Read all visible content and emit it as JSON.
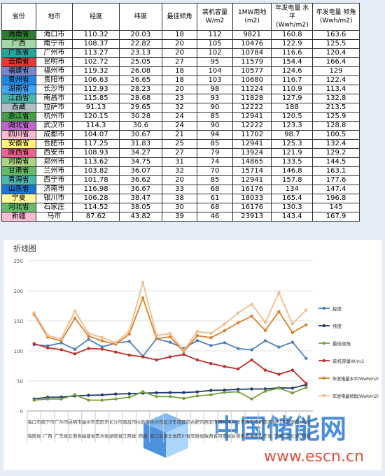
{
  "table": {
    "headers": [
      "省份",
      "地市",
      "经度",
      "纬度",
      "最佳倾角",
      "装机容量 W/m2",
      "1MW用地 (m2)",
      "年发电量 水平(Wwh/m2)",
      "年发电量 倾角(Wwh/m2)"
    ],
    "row_colors": [
      "#2e7d32",
      "#a5d6a7",
      "#26a69a",
      "#e53935",
      "#7986cb",
      "#1e88e5",
      "#42a5f5",
      "#4db6ac",
      "#b0bec5",
      "#43a047",
      "#ba68c8",
      "#f8bbd0",
      "#fff176",
      "#f06292",
      "#aed581",
      "#66bb6a",
      "#4db6ac",
      "#1976d2",
      "#fff59d",
      "#66bb6a",
      "#f8bbd0"
    ],
    "rows": [
      [
        "海南省",
        "海口市",
        110.32,
        20.03,
        18,
        112,
        9821,
        160.8,
        163.6
      ],
      [
        "广西",
        "南宁市",
        108.37,
        22.82,
        20,
        105,
        10476,
        122.9,
        125.5
      ],
      [
        "广东省",
        "广州市",
        113.27,
        23.13,
        20,
        102,
        10784,
        116.6,
        120.4
      ],
      [
        "云南省",
        "昆明市",
        102.72,
        25.05,
        27,
        95,
        11579,
        154.4,
        166.4
      ],
      [
        "福建省",
        "福州市",
        119.32,
        26.08,
        18,
        104,
        10577,
        124.6,
        129
      ],
      [
        "贵州省",
        "贵阳市",
        106.63,
        26.65,
        18,
        103,
        10680,
        116.7,
        122.4
      ],
      [
        "湖南省",
        "长沙市",
        112.93,
        28.23,
        20,
        98,
        11224,
        110.9,
        113.4
      ],
      [
        "江西省",
        "南昌市",
        115.85,
        28.68,
        23,
        93,
        11828,
        127.9,
        132.8
      ],
      [
        "西藏",
        "拉萨市",
        91.13,
        29.65,
        32,
        90,
        12222,
        188,
        213.5
      ],
      [
        "浙江省",
        "杭州市",
        120.15,
        30.28,
        24,
        85,
        12941,
        120.5,
        125.9
      ],
      [
        "湖北省",
        "武汉市",
        114.3,
        30.6,
        24,
        90,
        12222,
        123.3,
        128.8
      ],
      [
        "四川省",
        "成都市",
        104.07,
        30.67,
        21,
        94,
        11702,
        98.7,
        100.5
      ],
      [
        "安徽省",
        "合肥市",
        117.25,
        31.83,
        25,
        85,
        12941,
        125.3,
        132.4
      ],
      [
        "陕西省",
        "西安市",
        108.93,
        34.27,
        27,
        79,
        13924,
        121.9,
        129.2
      ],
      [
        "河南省",
        "郑州市",
        113.62,
        34.75,
        31,
        74,
        14865,
        133.5,
        144.5
      ],
      [
        "甘肃省",
        "兰州市",
        103.82,
        36.07,
        32,
        70,
        15714,
        146.8,
        163.1
      ],
      [
        "青海省",
        "西宁市",
        101.78,
        36.62,
        20,
        85,
        12941,
        157.8,
        177.6
      ],
      [
        "山东省",
        "济南市",
        116.98,
        36.67,
        33,
        68,
        16176,
        134,
        147.4
      ],
      [
        "宁夏",
        "银川市",
        106.28,
        38.47,
        38,
        61,
        18033,
        165.4,
        196.8
      ],
      [
        "河北省",
        "石家庄",
        114.52,
        38.05,
        30,
        68,
        16176,
        130.3,
        145
      ],
      [
        "新疆",
        "乌市",
        87.62,
        43.82,
        39,
        46,
        23913,
        143.4,
        167.9
      ]
    ]
  },
  "chart_data": {
    "type": "line",
    "title": "折线图",
    "categories": [
      "海口市",
      "南宁市",
      "广州市",
      "昆明市",
      "福州市",
      "贵阳市",
      "长沙市",
      "南昌市",
      "拉萨市",
      "杭州市",
      "武汉市",
      "成都市",
      "合肥市",
      "西安市",
      "郑州市",
      "兰州市",
      "西宁市",
      "济南市",
      "银川市",
      "石家庄",
      "乌市"
    ],
    "category_groups": [
      "海南省",
      "广西",
      "广东省",
      "云南省",
      "福建省",
      "贵州省",
      "湖南省",
      "江西省",
      "西藏",
      "浙江省",
      "湖北省",
      "四川省",
      "安徽省",
      "陕西省",
      "河南省",
      "甘肃省",
      "青海省",
      "山东省",
      "宁夏",
      "河北省",
      "新疆"
    ],
    "ylim": [
      0,
      250
    ],
    "yticks": [
      0,
      50,
      100,
      150,
      200,
      250
    ],
    "grid": true,
    "series": [
      {
        "name": "经度",
        "color": "#4f81bd",
        "values": [
          110.32,
          108.37,
          113.27,
          102.72,
          119.32,
          106.63,
          112.93,
          115.85,
          91.13,
          120.15,
          114.3,
          104.07,
          117.25,
          108.93,
          113.62,
          103.82,
          101.78,
          116.98,
          106.28,
          114.52,
          87.62
        ]
      },
      {
        "name": "纬度",
        "color": "#1f3a6e",
        "values": [
          20.03,
          22.82,
          23.13,
          25.05,
          26.08,
          26.65,
          28.23,
          28.68,
          29.65,
          30.28,
          30.6,
          30.67,
          31.83,
          34.27,
          34.75,
          36.07,
          36.62,
          36.67,
          38.47,
          38.05,
          43.82
        ]
      },
      {
        "name": "最佳倾角",
        "color": "#77a03a",
        "values": [
          18,
          20,
          20,
          27,
          18,
          18,
          20,
          23,
          32,
          24,
          24,
          21,
          25,
          27,
          31,
          32,
          20,
          33,
          38,
          30,
          39
        ]
      },
      {
        "name": "装机容量W/m2",
        "color": "#c0302b",
        "values": [
          112,
          105,
          102,
          95,
          104,
          103,
          98,
          93,
          90,
          85,
          90,
          94,
          85,
          79,
          74,
          70,
          85,
          68,
          61,
          68,
          46
        ]
      },
      {
        "name": "年发电量水平(Wwh/m2)",
        "color": "#d9822b",
        "values": [
          160.8,
          122.9,
          116.6,
          154.4,
          124.6,
          116.7,
          110.9,
          127.9,
          188,
          120.5,
          123.3,
          98.7,
          125.3,
          121.9,
          133.5,
          146.8,
          157.8,
          134,
          165.4,
          130.3,
          143.4
        ]
      },
      {
        "name": "年发电量倾角(Wwh/m2)",
        "color": "#f5b98a",
        "values": [
          163.6,
          125.5,
          120.4,
          166.4,
          129,
          122.4,
          113.4,
          132.8,
          213.5,
          125.9,
          128.8,
          100.5,
          132.4,
          129.2,
          144.5,
          163.1,
          177.6,
          147.4,
          196.8,
          145,
          167.9
        ]
      }
    ]
  },
  "watermark": {
    "name": "中国储能网",
    "url": "www.escn.cn"
  }
}
